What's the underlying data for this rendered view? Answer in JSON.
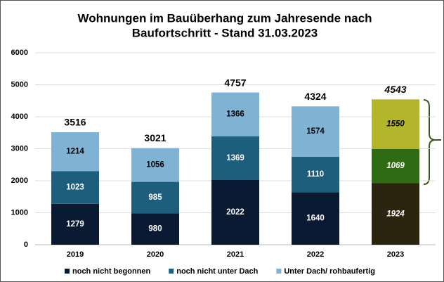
{
  "chart_data": {
    "type": "stacked_bar",
    "title": [
      "Wohnungen im Bauüberhang zum Jahresende nach",
      "Baufortschritt - Stand 31.03.2023"
    ],
    "categories": [
      "2019",
      "2020",
      "2021",
      "2022",
      "2023"
    ],
    "series": [
      {
        "name": "noch nicht begonnen",
        "color": "#0a1a33",
        "colors": [
          "#0a1a33",
          "#0a1a33",
          "#0a1a33",
          "#0a1a33",
          "#2b240e"
        ],
        "values": [
          1279,
          980,
          2022,
          1640,
          1924
        ]
      },
      {
        "name": "noch nicht unter Dach",
        "color": "#1d5e7d",
        "colors": [
          "#1d5e7d",
          "#1d5e7d",
          "#1d5e7d",
          "#1d5e7d",
          "#2e6b12"
        ],
        "values": [
          1023,
          985,
          1369,
          1110,
          1069
        ]
      },
      {
        "name": "Unter Dach/ rohbaufertig",
        "color": "#7fb2d3",
        "colors": [
          "#7fb2d3",
          "#7fb2d3",
          "#7fb2d3",
          "#7fb2d3",
          "#b3b52a"
        ],
        "values": [
          1214,
          1056,
          1366,
          1574,
          1550
        ]
      }
    ],
    "totals": [
      3516,
      3021,
      4757,
      4324,
      4543
    ],
    "ylim": [
      0,
      6000
    ],
    "yticks": [
      0,
      1000,
      2000,
      3000,
      4000,
      5000,
      6000
    ],
    "grid": true,
    "legend": "bottom"
  }
}
